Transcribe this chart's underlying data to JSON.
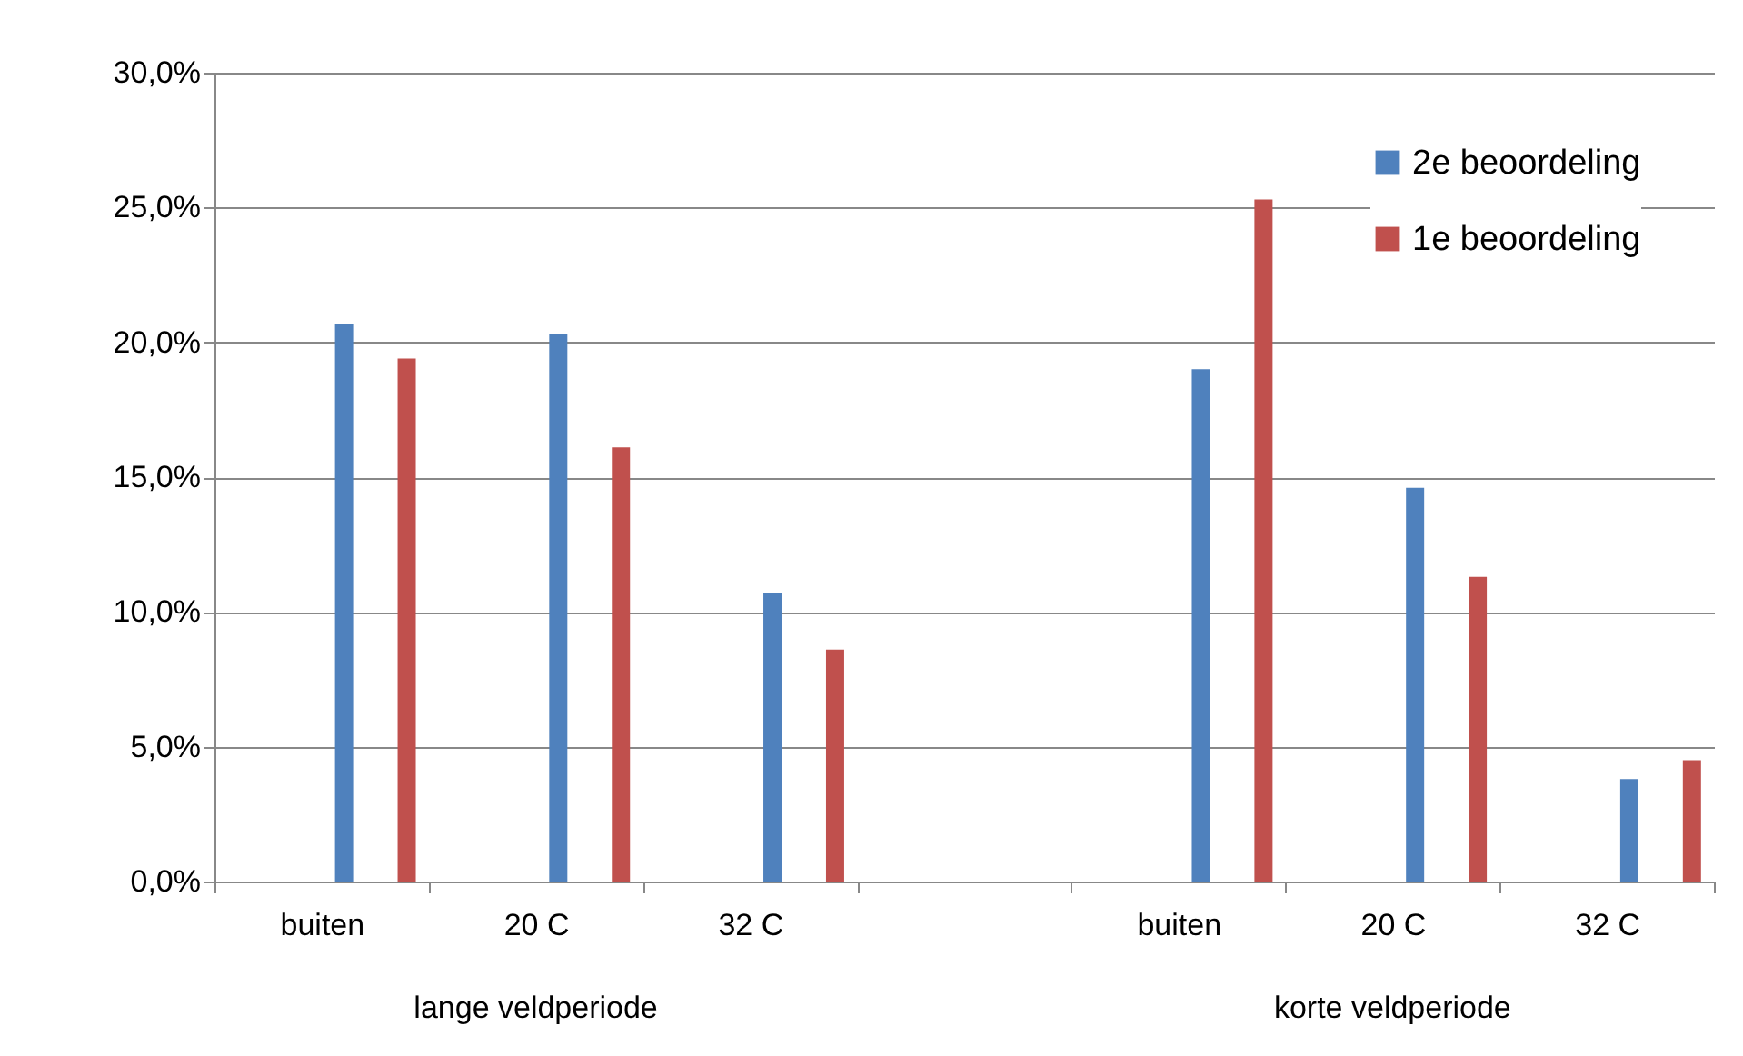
{
  "chart_data": {
    "type": "bar",
    "categories": [
      "buiten",
      "20 C",
      "32 C",
      null,
      "buiten",
      "20 C",
      "32 C"
    ],
    "series": [
      {
        "name": "2e beoordeling",
        "color": "#4f81bd",
        "values": [
          20.7,
          20.3,
          10.7,
          null,
          19.0,
          14.6,
          3.8
        ]
      },
      {
        "name": "1e beoordeling",
        "color": "#c0504d",
        "values": [
          19.4,
          16.1,
          8.6,
          null,
          25.3,
          11.3,
          4.5
        ]
      }
    ],
    "ylim": [
      0,
      30
    ],
    "yticks": [
      {
        "value": 0,
        "label": "0,0%"
      },
      {
        "value": 5,
        "label": "5,0%"
      },
      {
        "value": 10,
        "label": "10,0%"
      },
      {
        "value": 15,
        "label": "15,0%"
      },
      {
        "value": 20,
        "label": "20,0%"
      },
      {
        "value": 25,
        "label": "25,0%"
      },
      {
        "value": 30,
        "label": "30,0%"
      }
    ],
    "grid": "y",
    "legend": "top right",
    "annotations": [
      "lange veldperiode",
      "korte veldperiode"
    ]
  }
}
